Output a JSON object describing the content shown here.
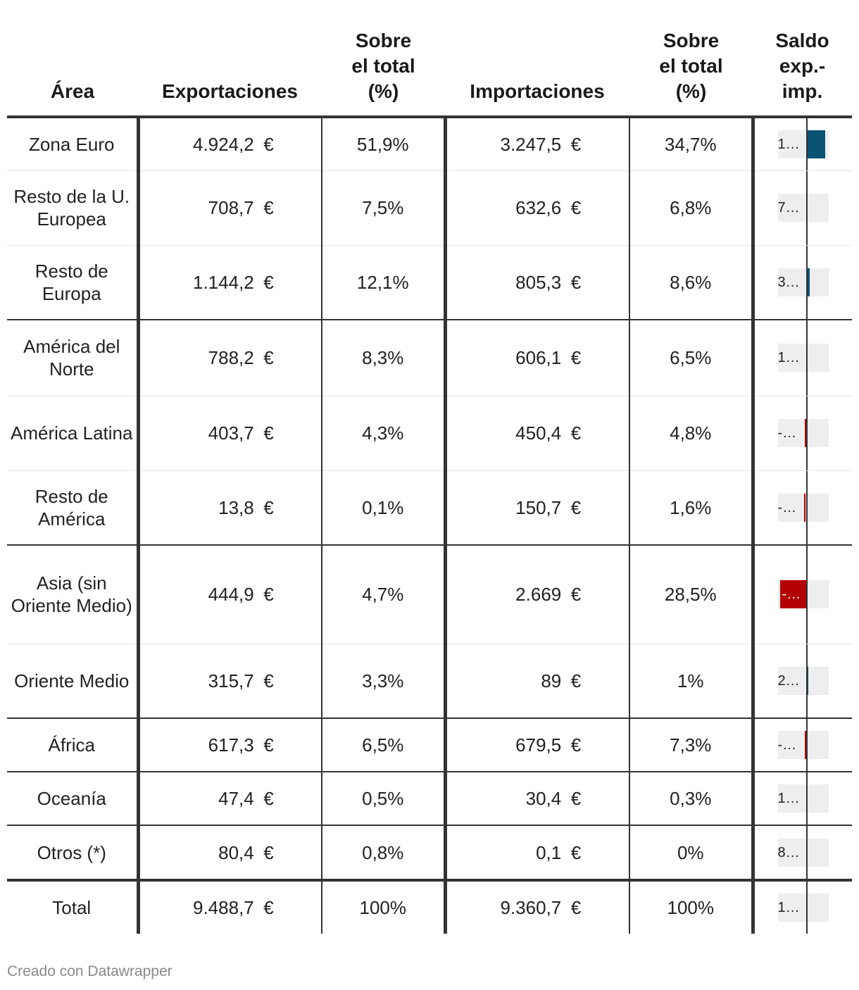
{
  "chart_data": {
    "type": "table",
    "columns": [
      "Área",
      "Exportaciones",
      "Sobre el total (%)",
      "Importaciones",
      "Sobre el total (%)",
      "Saldo exp.- imp."
    ],
    "header_lines": [
      [
        "Área"
      ],
      [
        "Exportaciones"
      ],
      [
        "Sobre",
        "el total",
        "(%)"
      ],
      [
        "Importaciones"
      ],
      [
        "Sobre",
        "el total",
        "(%)"
      ],
      [
        "Saldo",
        "exp.-",
        "imp."
      ]
    ],
    "currency_symbol": "€",
    "rows": [
      {
        "area": "Zona Euro",
        "exportaciones": "4.924,2",
        "exp_pct": "51,9%",
        "importaciones": "3.247,5",
        "imp_pct": "34,7%",
        "saldo": 1676.7,
        "saldo_label": "1…"
      },
      {
        "area": "Resto de la U. Europea",
        "exportaciones": "708,7",
        "exp_pct": "7,5%",
        "importaciones": "632,6",
        "imp_pct": "6,8%",
        "saldo": 76.1,
        "saldo_label": "7…"
      },
      {
        "area": "Resto de Europa",
        "exportaciones": "1.144,2",
        "exp_pct": "12,1%",
        "importaciones": "805,3",
        "imp_pct": "8,6%",
        "saldo": 338.9,
        "saldo_label": "3…"
      },
      {
        "area": "América del Norte",
        "exportaciones": "788,2",
        "exp_pct": "8,3%",
        "importaciones": "606,1",
        "imp_pct": "6,5%",
        "saldo": 182.1,
        "saldo_label": "1…"
      },
      {
        "area": "América Latina",
        "exportaciones": "403,7",
        "exp_pct": "4,3%",
        "importaciones": "450,4",
        "imp_pct": "4,8%",
        "saldo": -46.7,
        "saldo_label": "-…"
      },
      {
        "area": "Resto de América",
        "exportaciones": "13,8",
        "exp_pct": "0,1%",
        "importaciones": "150,7",
        "imp_pct": "1,6%",
        "saldo": -136.9,
        "saldo_label": "-…"
      },
      {
        "area": "Asia (sin Oriente Medio)",
        "exportaciones": "444,9",
        "exp_pct": "4,7%",
        "importaciones": "2.669",
        "imp_pct": "28,5%",
        "saldo": -2224.1,
        "saldo_label": "-…"
      },
      {
        "area": "Oriente Medio",
        "exportaciones": "315,7",
        "exp_pct": "3,3%",
        "importaciones": "89",
        "imp_pct": "1%",
        "saldo": 226.7,
        "saldo_label": "2…"
      },
      {
        "area": "África",
        "exportaciones": "617,3",
        "exp_pct": "6,5%",
        "importaciones": "679,5",
        "imp_pct": "7,3%",
        "saldo": -62.2,
        "saldo_label": "-…"
      },
      {
        "area": "Oceanía",
        "exportaciones": "47,4",
        "exp_pct": "0,5%",
        "importaciones": "30,4",
        "imp_pct": "0,3%",
        "saldo": 17.0,
        "saldo_label": "1…"
      },
      {
        "area": "Otros (*)",
        "exportaciones": "80,4",
        "exp_pct": "0,8%",
        "importaciones": "0,1",
        "imp_pct": "0%",
        "saldo": 80.3,
        "saldo_label": "8…"
      },
      {
        "area": "Total",
        "exportaciones": "9.488,7",
        "exp_pct": "100%",
        "importaciones": "9.360,7",
        "imp_pct": "100%",
        "saldo": 128.0,
        "saldo_label": "1…"
      }
    ],
    "saldo_scale_max_abs": 2224.1,
    "colors": {
      "positive": "#0b5373",
      "negative": "#b30000",
      "bar_background": "#eeeeee"
    }
  },
  "footer": {
    "credit": "Creado con Datawrapper"
  }
}
